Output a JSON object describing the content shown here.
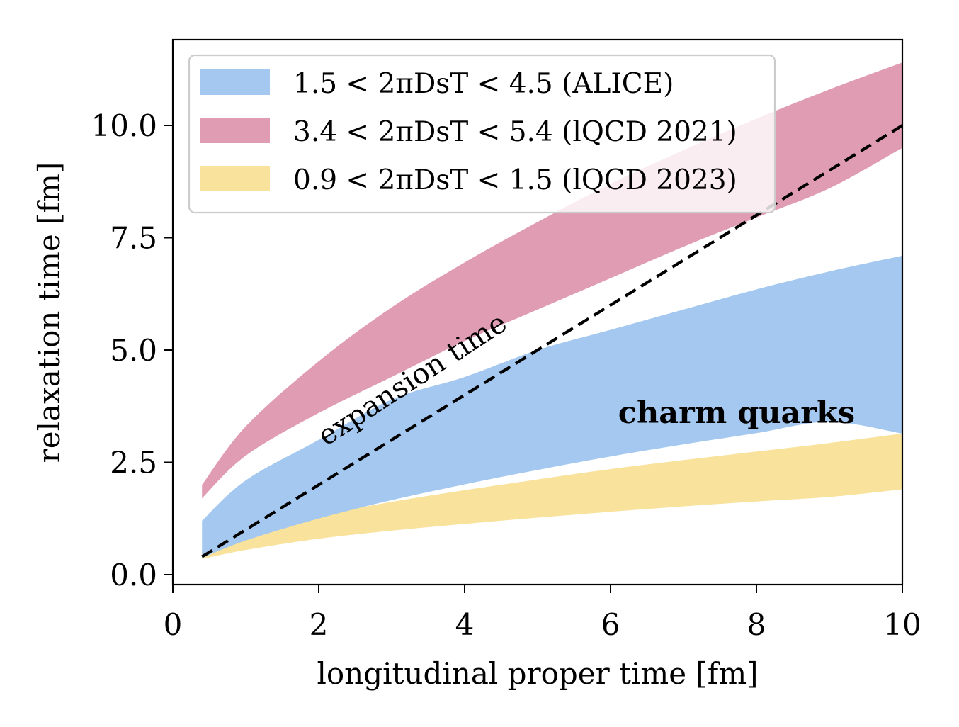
{
  "chart_data": {
    "type": "area",
    "xlabel": "longitudinal proper time [fm]",
    "ylabel": "relaxation time [fm]",
    "xlim": [
      0,
      10
    ],
    "ylim": [
      -0.2,
      12.0
    ],
    "x_ticks": [
      0,
      2,
      4,
      6,
      8,
      10
    ],
    "x_tick_labels": [
      "0",
      "2",
      "4",
      "6",
      "8",
      "10"
    ],
    "y_ticks": [
      0.0,
      2.5,
      5.0,
      7.5,
      10.0
    ],
    "y_tick_labels": [
      "0.0",
      "2.5",
      "5.0",
      "7.5",
      "10.0"
    ],
    "grid": false,
    "legend_position": "top-left",
    "x": [
      0.4,
      1,
      2,
      3,
      4,
      5,
      6,
      7,
      8,
      9,
      10
    ],
    "series": [
      {
        "name": "1.5 < 2πDsT < 4.5 (ALICE)",
        "color": "#a4c8ef",
        "lower": [
          0.37,
          0.76,
          1.25,
          1.66,
          2.01,
          2.33,
          2.63,
          2.9,
          3.15,
          3.4,
          3.14
        ],
        "upper": [
          1.2,
          2.1,
          3.0,
          3.9,
          4.4,
          5.0,
          5.45,
          5.9,
          6.35,
          6.75,
          7.1
        ]
      },
      {
        "name": "3.4 < 2πDsT < 5.4 (lQCD 2021)",
        "color": "#e09cb3",
        "lower": [
          1.7,
          2.65,
          3.6,
          4.4,
          5.2,
          5.9,
          6.6,
          7.3,
          7.95,
          8.6,
          9.5
        ],
        "upper": [
          2.0,
          3.3,
          4.75,
          5.95,
          6.95,
          7.85,
          8.7,
          9.45,
          10.15,
          10.8,
          11.4
        ]
      },
      {
        "name": "0.9 < 2πDsT < 1.5 (lQCD 2023)",
        "color": "#f8e29c",
        "lower": [
          0.35,
          0.55,
          0.8,
          0.98,
          1.13,
          1.27,
          1.4,
          1.52,
          1.63,
          1.73,
          1.9
        ],
        "upper": [
          0.5,
          0.85,
          1.3,
          1.62,
          1.88,
          2.12,
          2.35,
          2.55,
          2.74,
          2.93,
          3.14
        ]
      }
    ],
    "reference_line": {
      "name": "expansion time",
      "style": "dashed",
      "color": "#000000",
      "x": [
        0.4,
        10
      ],
      "y": [
        0.4,
        10
      ]
    },
    "annotations": [
      {
        "text": "expansion time",
        "x": 2.1,
        "y": 2.85,
        "rotation_deg": -33
      },
      {
        "text": "charm quarks",
        "x": 9.35,
        "y": 3.6,
        "bold": true
      }
    ],
    "overlap_color": "#ae7fad"
  }
}
